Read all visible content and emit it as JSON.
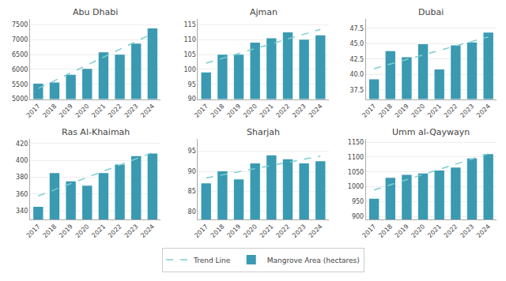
{
  "chart_data": [
    {
      "type": "bar",
      "title": "Abu Dhabi",
      "categories": [
        "2017",
        "2018",
        "2019",
        "2020",
        "2021",
        "2022",
        "2023",
        "2024"
      ],
      "series": [
        {
          "name": "Trend Line",
          "type": "line",
          "color": "#7ecece",
          "line_style": "dashed",
          "values": [
            5357.5,
            5621.43,
            5885.36,
            6149.29,
            6413.21,
            6677.14,
            6941.07,
            7205.0
          ]
        },
        {
          "name": "Mangrove Area (hectares)",
          "type": "bar",
          "color": "#3a9ab2",
          "values": [
            5520,
            5560,
            5820,
            6020,
            6580,
            6500,
            6870,
            7380
          ]
        }
      ],
      "ylim": [
        5000,
        7700
      ],
      "yticks": [
        5000,
        5500,
        6000,
        6500,
        7000,
        7500
      ],
      "grid": true,
      "legend": "bottom"
    },
    {
      "type": "bar",
      "title": "Ajman",
      "categories": [
        "2017",
        "2018",
        "2019",
        "2020",
        "2021",
        "2022",
        "2023",
        "2024"
      ],
      "series": [
        {
          "name": "Trend Line",
          "type": "line",
          "color": "#7ecece",
          "line_style": "dashed",
          "values": [
            102.125,
            103.75,
            105.375,
            107.0,
            108.625,
            110.25,
            111.875,
            113.5
          ]
        },
        {
          "name": "Mangrove Area (hectares)",
          "type": "bar",
          "color": "#3a9ab2",
          "values": [
            99,
            105,
            105,
            109,
            110.5,
            112.5,
            110,
            111.5
          ]
        }
      ],
      "ylim": [
        90,
        117
      ],
      "yticks": [
        90,
        95,
        100,
        105,
        110,
        115
      ],
      "grid": true,
      "legend": "bottom"
    },
    {
      "type": "bar",
      "title": "Dubai",
      "categories": [
        "2017",
        "2018",
        "2019",
        "2020",
        "2021",
        "2022",
        "2023",
        "2024"
      ],
      "series": [
        {
          "name": "Trend Line",
          "type": "line",
          "color": "#7ecece",
          "line_style": "dashed",
          "values": [
            40.95,
            41.6857,
            42.4214,
            43.1571,
            43.8929,
            44.6286,
            45.3643,
            46.1
          ]
        },
        {
          "name": "Mangrove Area (hectares)",
          "type": "bar",
          "color": "#3a9ab2",
          "values": [
            39.2,
            43.8,
            42.8,
            44.9,
            40.8,
            44.7,
            45.2,
            46.8
          ]
        }
      ],
      "ylim": [
        36,
        49
      ],
      "yticks": [
        37.5,
        {
          "value": 40,
          "label": "40.0"
        },
        42.5,
        {
          "value": 45,
          "label": "45.0"
        },
        47.5
      ],
      "grid": true,
      "legend": "bottom"
    },
    {
      "type": "bar",
      "title": "Ras Al-Khaimah",
      "categories": [
        "2017",
        "2018",
        "2019",
        "2020",
        "2021",
        "2022",
        "2023",
        "2024"
      ],
      "series": [
        {
          "name": "Trend Line",
          "type": "line",
          "color": "#7ecece",
          "line_style": "dashed",
          "values": [
            357.83,
            365.17,
            372.5,
            379.83,
            387.17,
            394.5,
            401.83,
            409.17
          ]
        },
        {
          "name": "Mangrove Area (hectares)",
          "type": "bar",
          "color": "#3a9ab2",
          "values": [
            345,
            385,
            375,
            370,
            385,
            395,
            405,
            408
          ]
        }
      ],
      "ylim": [
        330,
        425
      ],
      "yticks": [
        340,
        360,
        380,
        400,
        420
      ],
      "grid": true,
      "legend": "bottom"
    },
    {
      "type": "bar",
      "title": "Sharjah",
      "categories": [
        "2017",
        "2018",
        "2019",
        "2020",
        "2021",
        "2022",
        "2023",
        "2024"
      ],
      "series": [
        {
          "name": "Trend Line",
          "type": "line",
          "color": "#7ecece",
          "line_style": "dashed",
          "values": [
            88.3333,
            89.1131,
            89.8929,
            90.6726,
            91.4524,
            92.2321,
            93.0119,
            93.7917
          ]
        },
        {
          "name": "Mangrove Area (hectares)",
          "type": "bar",
          "color": "#3a9ab2",
          "values": [
            87,
            90,
            88,
            92,
            94,
            93,
            92,
            92.5
          ]
        }
      ],
      "ylim": [
        78,
        98
      ],
      "yticks": [
        80,
        85,
        90,
        95
      ],
      "grid": true,
      "legend": "bottom"
    },
    {
      "type": "bar",
      "title": "Umm al-Qaywayn",
      "categories": [
        "2017",
        "2018",
        "2019",
        "2020",
        "2021",
        "2022",
        "2023",
        "2024"
      ],
      "series": [
        {
          "name": "Trend Line",
          "type": "line",
          "color": "#7ecece",
          "line_style": "dashed",
          "values": [
            989.17,
            1006.55,
            1023.93,
            1041.31,
            1058.69,
            1076.07,
            1093.45,
            1110.83
          ]
        },
        {
          "name": "Mangrove Area (hectares)",
          "type": "bar",
          "color": "#3a9ab2",
          "values": [
            960,
            1030,
            1040,
            1045,
            1055,
            1065,
            1095,
            1110
          ]
        }
      ],
      "ylim": [
        890,
        1160
      ],
      "yticks": [
        900,
        950,
        1000,
        1050,
        1100,
        1150
      ],
      "grid": true,
      "legend": "bottom"
    }
  ]
}
